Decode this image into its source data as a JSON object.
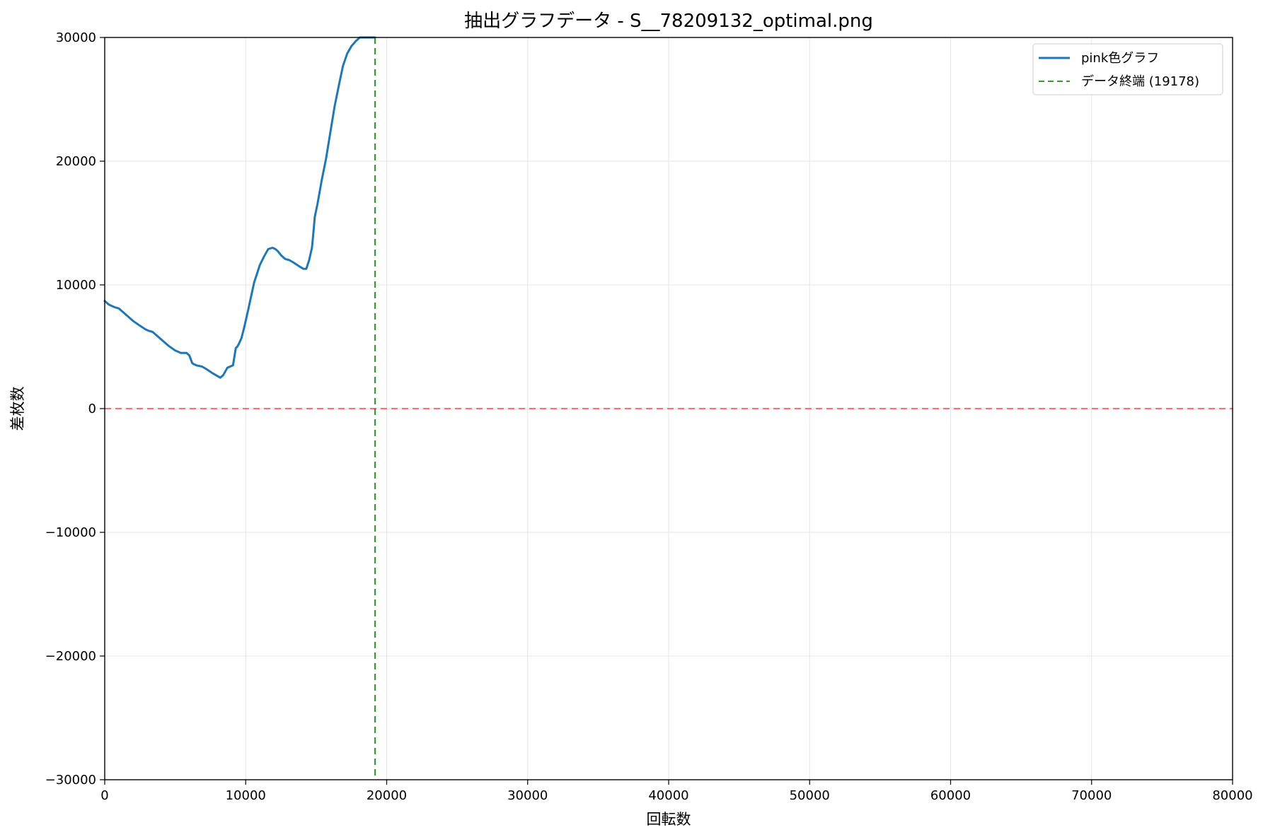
{
  "chart_data": {
    "type": "line",
    "title": "抽出グラフデータ - S__78209132_optimal.png",
    "xlabel": "回転数",
    "ylabel": "差枚数",
    "xlim": [
      0,
      80000
    ],
    "ylim": [
      -30000,
      30000
    ],
    "xticks": [
      0,
      10000,
      20000,
      30000,
      40000,
      50000,
      60000,
      70000,
      80000
    ],
    "xtick_labels": [
      "0",
      "10000",
      "20000",
      "30000",
      "40000",
      "50000",
      "60000",
      "70000",
      "80000"
    ],
    "yticks": [
      -30000,
      -20000,
      -10000,
      0,
      10000,
      20000,
      30000
    ],
    "ytick_labels": [
      "−30000",
      "−20000",
      "−10000",
      "0",
      "10000",
      "20000",
      "30000"
    ],
    "grid": true,
    "legend_position": "top-right",
    "series": [
      {
        "name": "pink色グラフ",
        "color": "#1f77b4",
        "style": "solid",
        "x": [
          0,
          300,
          700,
          1000,
          1200,
          1500,
          2000,
          2500,
          2900,
          3100,
          3400,
          3700,
          4000,
          4500,
          5000,
          5400,
          5800,
          6000,
          6200,
          6300,
          6500,
          6900,
          7200,
          7600,
          7900,
          8200,
          8400,
          8700,
          8900,
          9100,
          9300,
          9400,
          9500,
          9700,
          9900,
          10200,
          10600,
          11000,
          11300,
          11600,
          11900,
          12100,
          12300,
          12500,
          12800,
          13100,
          13400,
          13800,
          14100,
          14300,
          14500,
          14700,
          14800,
          14900,
          15100,
          15400,
          15700,
          16000,
          16300,
          16600,
          16900,
          17200,
          17500,
          17800,
          18100,
          18400,
          18700,
          19000,
          19178
        ],
        "y": [
          8700,
          8400,
          8200,
          8100,
          7900,
          7600,
          7100,
          6700,
          6400,
          6300,
          6200,
          5900,
          5600,
          5100,
          4700,
          4500,
          4500,
          4300,
          3700,
          3600,
          3500,
          3400,
          3200,
          2900,
          2700,
          2500,
          2700,
          3300,
          3400,
          3500,
          4900,
          5000,
          5200,
          5700,
          6600,
          8100,
          10200,
          11600,
          12300,
          12900,
          13000,
          12900,
          12700,
          12400,
          12100,
          12000,
          11800,
          11500,
          11300,
          11300,
          12000,
          13000,
          14200,
          15500,
          16600,
          18500,
          20200,
          22300,
          24400,
          26100,
          27700,
          28700,
          29300,
          29700,
          30000,
          30000,
          30000,
          30000,
          30000
        ]
      },
      {
        "name": "データ終端 (19178)",
        "color": "#2ca02c",
        "style": "dashed",
        "type": "vline",
        "x": 19178
      },
      {
        "color": "#ff0000",
        "style": "dashed",
        "type": "hline",
        "y": 0
      }
    ]
  }
}
